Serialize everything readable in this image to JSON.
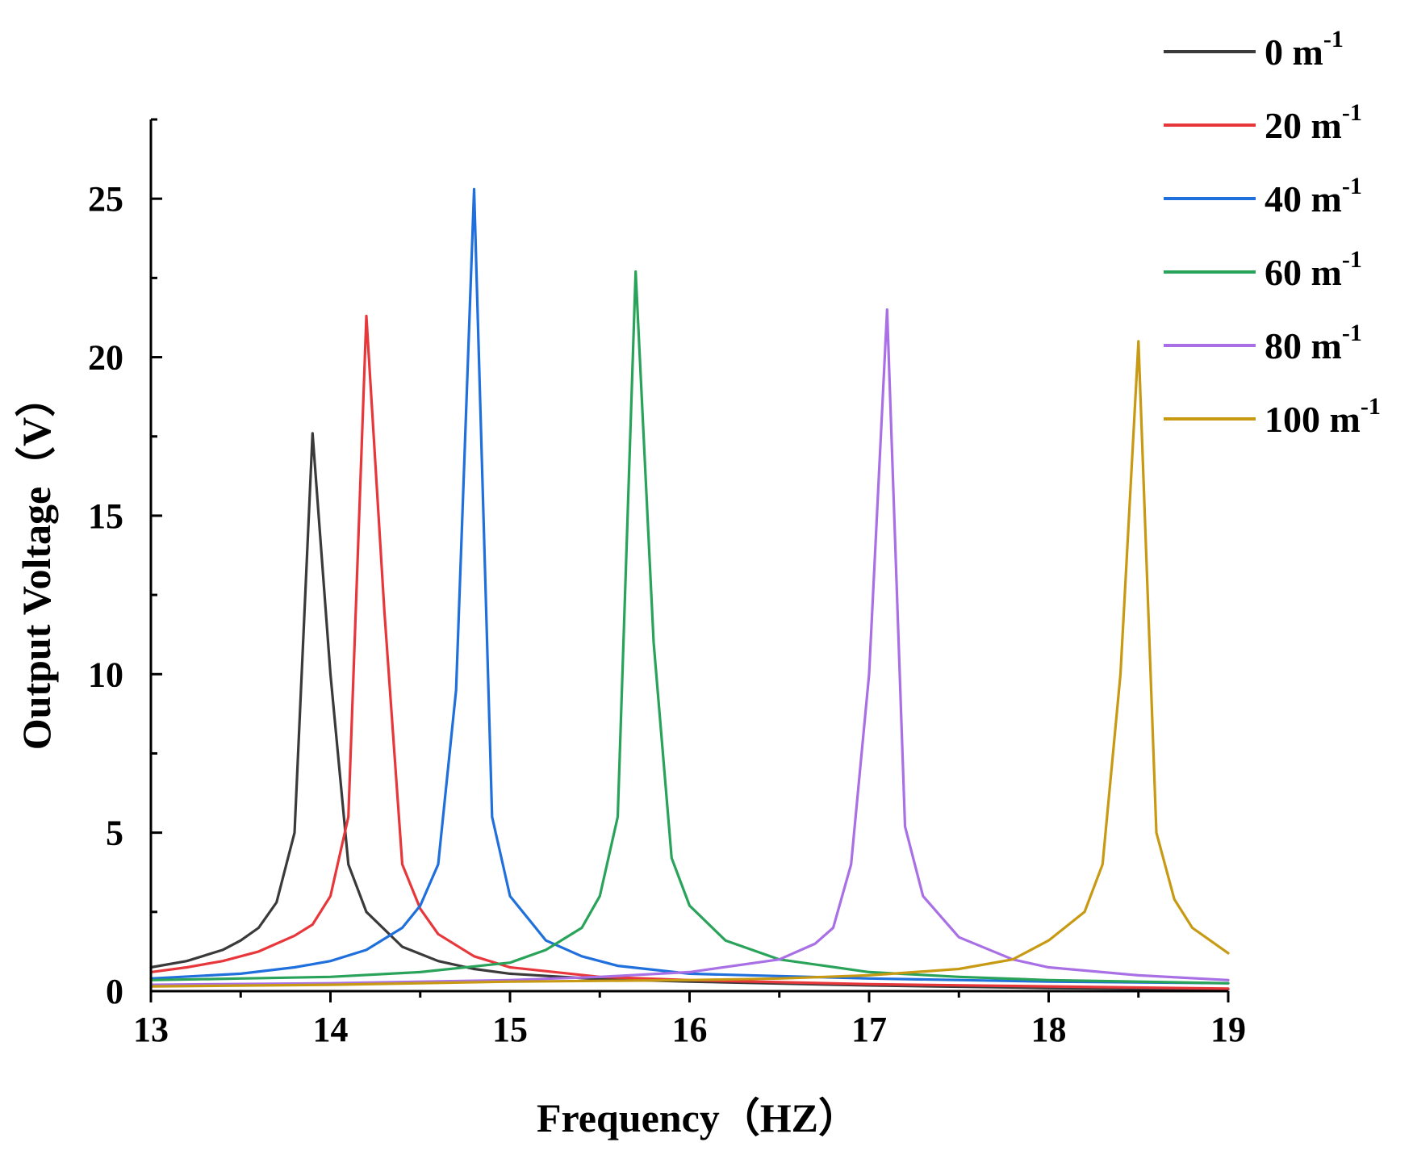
{
  "chart_data": {
    "type": "line",
    "title": "",
    "xlabel": "Frequency（HZ）",
    "ylabel": "Output Voltage（V）",
    "xlim": [
      13,
      19
    ],
    "ylim": [
      0,
      27.5
    ],
    "x_ticks": [
      13,
      14,
      15,
      16,
      17,
      18,
      19
    ],
    "y_ticks": [
      0,
      5,
      10,
      15,
      20,
      25
    ],
    "grid": false,
    "legend_position": "top-right",
    "series": [
      {
        "name": "0 m",
        "unit_sup": "-1",
        "color": "#3a3a3a",
        "points": [
          [
            13.0,
            0.75
          ],
          [
            13.2,
            0.95
          ],
          [
            13.4,
            1.3
          ],
          [
            13.5,
            1.6
          ],
          [
            13.6,
            2.0
          ],
          [
            13.7,
            2.8
          ],
          [
            13.8,
            5.0
          ],
          [
            13.9,
            17.6
          ],
          [
            14.0,
            10.0
          ],
          [
            14.1,
            4.0
          ],
          [
            14.2,
            2.5
          ],
          [
            14.4,
            1.4
          ],
          [
            14.6,
            0.95
          ],
          [
            14.8,
            0.7
          ],
          [
            15.0,
            0.55
          ],
          [
            15.5,
            0.38
          ],
          [
            16.0,
            0.3
          ],
          [
            17.0,
            0.18
          ],
          [
            18.0,
            0.1
          ],
          [
            19.0,
            0.05
          ]
        ]
      },
      {
        "name": "20 m",
        "unit_sup": "-1",
        "color": "#e8373b",
        "points": [
          [
            13.0,
            0.6
          ],
          [
            13.2,
            0.75
          ],
          [
            13.4,
            0.95
          ],
          [
            13.6,
            1.25
          ],
          [
            13.8,
            1.75
          ],
          [
            13.9,
            2.1
          ],
          [
            14.0,
            3.0
          ],
          [
            14.1,
            5.5
          ],
          [
            14.2,
            21.3
          ],
          [
            14.3,
            12.0
          ],
          [
            14.4,
            4.0
          ],
          [
            14.5,
            2.6
          ],
          [
            14.6,
            1.8
          ],
          [
            14.8,
            1.1
          ],
          [
            15.0,
            0.75
          ],
          [
            15.5,
            0.45
          ],
          [
            16.0,
            0.35
          ],
          [
            17.0,
            0.22
          ],
          [
            18.0,
            0.15
          ],
          [
            19.0,
            0.08
          ]
        ]
      },
      {
        "name": "40 m",
        "unit_sup": "-1",
        "color": "#1f6fdc",
        "points": [
          [
            13.0,
            0.4
          ],
          [
            13.5,
            0.55
          ],
          [
            13.8,
            0.75
          ],
          [
            14.0,
            0.95
          ],
          [
            14.2,
            1.3
          ],
          [
            14.4,
            2.0
          ],
          [
            14.5,
            2.7
          ],
          [
            14.6,
            4.0
          ],
          [
            14.7,
            9.5
          ],
          [
            14.8,
            25.3
          ],
          [
            14.9,
            5.5
          ],
          [
            15.0,
            3.0
          ],
          [
            15.2,
            1.6
          ],
          [
            15.4,
            1.1
          ],
          [
            15.6,
            0.8
          ],
          [
            16.0,
            0.55
          ],
          [
            17.0,
            0.4
          ],
          [
            18.0,
            0.3
          ],
          [
            19.0,
            0.25
          ]
        ]
      },
      {
        "name": "60 m",
        "unit_sup": "-1",
        "color": "#2aa35a",
        "points": [
          [
            13.0,
            0.35
          ],
          [
            13.5,
            0.4
          ],
          [
            14.0,
            0.45
          ],
          [
            14.5,
            0.6
          ],
          [
            15.0,
            0.9
          ],
          [
            15.2,
            1.3
          ],
          [
            15.4,
            2.0
          ],
          [
            15.5,
            3.0
          ],
          [
            15.6,
            5.5
          ],
          [
            15.7,
            22.7
          ],
          [
            15.8,
            11.0
          ],
          [
            15.9,
            4.2
          ],
          [
            16.0,
            2.7
          ],
          [
            16.2,
            1.6
          ],
          [
            16.5,
            1.0
          ],
          [
            17.0,
            0.6
          ],
          [
            17.5,
            0.45
          ],
          [
            18.0,
            0.35
          ],
          [
            19.0,
            0.25
          ]
        ]
      },
      {
        "name": "80 m",
        "unit_sup": "-1",
        "color": "#a970e6",
        "points": [
          [
            13.0,
            0.2
          ],
          [
            14.0,
            0.25
          ],
          [
            15.0,
            0.35
          ],
          [
            15.5,
            0.45
          ],
          [
            16.0,
            0.6
          ],
          [
            16.5,
            1.0
          ],
          [
            16.7,
            1.5
          ],
          [
            16.8,
            2.0
          ],
          [
            16.9,
            4.0
          ],
          [
            17.0,
            10.0
          ],
          [
            17.1,
            21.5
          ],
          [
            17.2,
            5.2
          ],
          [
            17.3,
            3.0
          ],
          [
            17.5,
            1.7
          ],
          [
            17.8,
            1.0
          ],
          [
            18.0,
            0.75
          ],
          [
            18.5,
            0.5
          ],
          [
            19.0,
            0.35
          ]
        ]
      },
      {
        "name": "100 m",
        "unit_sup": "-1",
        "color": "#c89a14",
        "points": [
          [
            13.0,
            0.15
          ],
          [
            14.0,
            0.2
          ],
          [
            15.0,
            0.3
          ],
          [
            16.0,
            0.35
          ],
          [
            16.5,
            0.4
          ],
          [
            17.0,
            0.5
          ],
          [
            17.5,
            0.7
          ],
          [
            17.8,
            1.0
          ],
          [
            18.0,
            1.6
          ],
          [
            18.2,
            2.5
          ],
          [
            18.3,
            4.0
          ],
          [
            18.4,
            10.0
          ],
          [
            18.5,
            20.5
          ],
          [
            18.6,
            5.0
          ],
          [
            18.7,
            2.9
          ],
          [
            18.8,
            2.0
          ],
          [
            19.0,
            1.2
          ]
        ]
      }
    ]
  }
}
